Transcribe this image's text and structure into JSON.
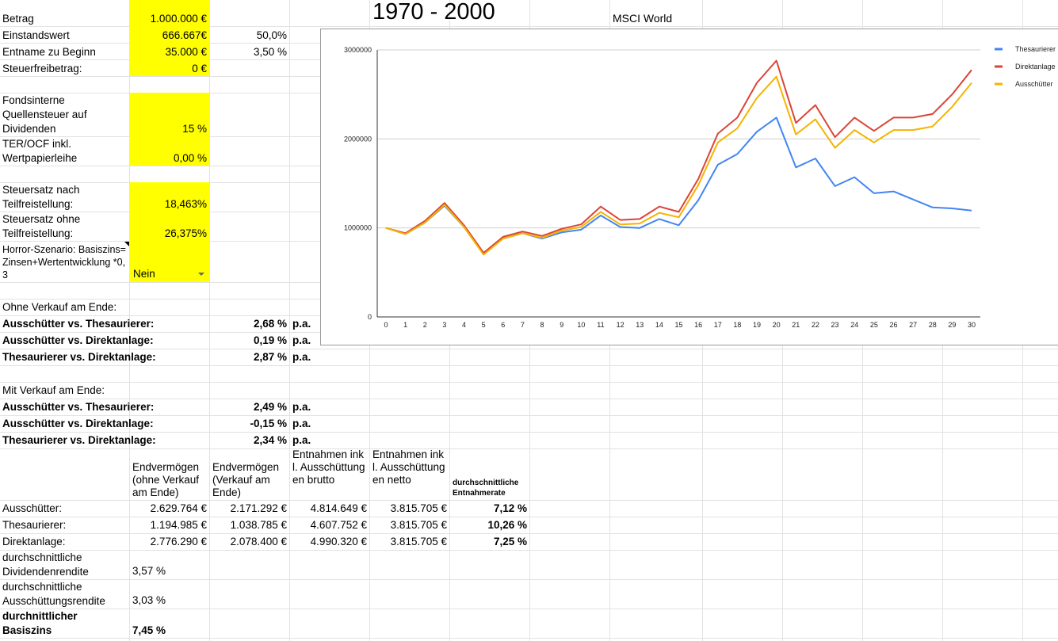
{
  "title": "1970 - 2000",
  "index_label": "MSCI World",
  "params": {
    "betrag_label": "Betrag",
    "betrag_value": "1.000.000 €",
    "einstand_label": "Einstandswert",
    "einstand_value": "666.667€",
    "einstand_pct": "50,0%",
    "entnahme_label": "Entname zu Beginn",
    "entnahme_value": "35.000 €",
    "entnahme_pct": "3,50 %",
    "freibetrag_label": "Steuerfreibetrag:",
    "freibetrag_value": "0 €",
    "quellensteuer_label": "Fondsinterne Quellensteuer auf Dividenden",
    "quellensteuer_value": "15 %",
    "ter_label": "TER/OCF inkl. Wertpapierleihe",
    "ter_value": "0,00 %",
    "steuersatz_tf_label": "Steuersatz nach Teilfreistellung:",
    "steuersatz_tf_value": "18,463%",
    "steuersatz_otf_label": "Steuersatz ohne Teilfreistellung:",
    "steuersatz_otf_value": "26,375%",
    "horror_label": "Horror-Szenario: Basiszins=Zinsen+Wertentwicklung *0,3",
    "horror_value": "Nein"
  },
  "ohne_verkauf": {
    "heading": "Ohne Verkauf am Ende:",
    "rows": [
      {
        "label": "Ausschütter vs. Thesaurierer:",
        "value": "2,68 %",
        "unit": "p.a."
      },
      {
        "label": "Ausschütter vs. Direktanlage:",
        "value": "0,19 %",
        "unit": "p.a."
      },
      {
        "label": "Thesaurierer vs. Direktanlage:",
        "value": "2,87 %",
        "unit": "p.a."
      }
    ]
  },
  "mit_verkauf": {
    "heading": "Mit Verkauf am Ende:",
    "rows": [
      {
        "label": "Ausschütter vs. Thesaurierer:",
        "value": "2,49 %",
        "unit": "p.a."
      },
      {
        "label": "Ausschütter vs. Direktanlage:",
        "value": "-0,15 %",
        "unit": "p.a."
      },
      {
        "label": "Thesaurierer vs. Direktanlage:",
        "value": "2,34 %",
        "unit": "p.a."
      }
    ]
  },
  "results": {
    "headers": [
      "Endvermögen (ohne Verkauf am Ende)",
      "Endvermögen (Verkauf am Ende)",
      "Entnahmen inkl. Ausschüttungen brutto",
      "Entnahmen inkl. Ausschüttungen netto",
      "durchschnittliche Entnahmerate"
    ],
    "rows": [
      {
        "label": "Ausschütter:",
        "cells": [
          "2.629.764 €",
          "2.171.292 €",
          "4.814.649 €",
          "3.815.705 €",
          "7,12 %"
        ]
      },
      {
        "label": "Thesaurierer:",
        "cells": [
          "1.194.985 €",
          "1.038.785 €",
          "4.607.752 €",
          "3.815.705 €",
          "10,26 %"
        ]
      },
      {
        "label": "Direktanlage:",
        "cells": [
          "2.776.290 €",
          "2.078.400 €",
          "4.990.320 €",
          "3.815.705 €",
          "7,25 %"
        ]
      }
    ]
  },
  "dividendenrendite": {
    "label": "durchschnittliche Dividendenrendite",
    "value": "3,57 %"
  },
  "ausschuettungsrendite": {
    "label": "durchschnittliche Ausschüttungsrendite",
    "value": "3,03 %"
  },
  "basiszins": {
    "label": "durchnittlicher Basiszins",
    "value": "7,45 %"
  },
  "chart_data": {
    "type": "line",
    "x": [
      0,
      1,
      2,
      3,
      4,
      5,
      6,
      7,
      8,
      9,
      10,
      11,
      12,
      13,
      14,
      15,
      16,
      17,
      18,
      19,
      20,
      21,
      22,
      23,
      24,
      25,
      26,
      27,
      28,
      29,
      30
    ],
    "ylim": [
      0,
      3000000
    ],
    "yticks": [
      "0",
      "1000000",
      "2000000",
      "3000000"
    ],
    "grid": true,
    "legend": "right",
    "series": [
      {
        "name": "Thesaurierer",
        "color": "#4285f4",
        "values": [
          1000000,
          930000,
          1060000,
          1250000,
          1010000,
          710000,
          880000,
          940000,
          880000,
          950000,
          980000,
          1140000,
          1010000,
          1000000,
          1100000,
          1030000,
          1310000,
          1710000,
          1830000,
          2080000,
          2240000,
          1680000,
          1780000,
          1470000,
          1570000,
          1390000,
          1410000,
          1320000,
          1230000,
          1220000,
          1195000
        ]
      },
      {
        "name": "Direktanlage",
        "color": "#db4437",
        "values": [
          1000000,
          940000,
          1080000,
          1280000,
          1030000,
          720000,
          900000,
          960000,
          910000,
          990000,
          1040000,
          1240000,
          1090000,
          1100000,
          1240000,
          1180000,
          1550000,
          2060000,
          2240000,
          2630000,
          2880000,
          2180000,
          2380000,
          2020000,
          2240000,
          2090000,
          2240000,
          2240000,
          2280000,
          2500000,
          2776000
        ]
      },
      {
        "name": "Ausschütter",
        "color": "#f4b400",
        "values": [
          1000000,
          930000,
          1060000,
          1260000,
          1010000,
          700000,
          880000,
          940000,
          890000,
          970000,
          1010000,
          1180000,
          1040000,
          1050000,
          1170000,
          1120000,
          1480000,
          1960000,
          2120000,
          2460000,
          2700000,
          2050000,
          2220000,
          1900000,
          2100000,
          1960000,
          2100000,
          2100000,
          2140000,
          2360000,
          2630000
        ]
      }
    ]
  }
}
